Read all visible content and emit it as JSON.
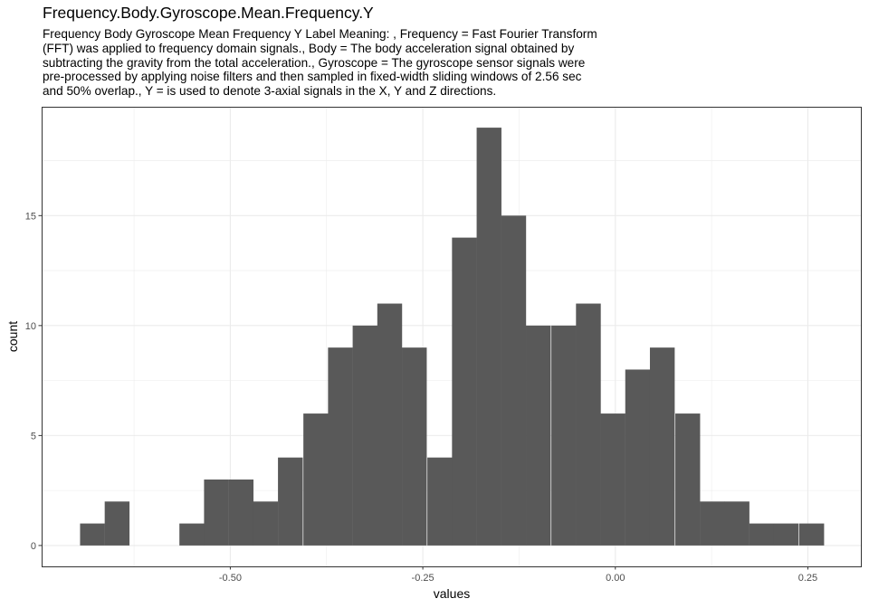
{
  "chart_data": {
    "type": "bar",
    "title": "Frequency.Body.Gyroscope.Mean.Frequency.Y",
    "subtitle_lines": [
      "Frequency Body Gyroscope Mean Frequency Y Label Meaning: , Frequency = Fast Fourier Transform",
      "(FFT) was applied to frequency domain signals., Body = The body acceleration signal obtained by",
      "subtracting the gravity from the total acceleration., Gyroscope = The gyroscope sensor signals were",
      "pre-processed by applying noise filters and then sampled in fixed-width sliding windows of 2.56 sec",
      "and 50% overlap., Y = is used to denote 3-axial signals in the X, Y and Z directions."
    ],
    "xlabel": "values",
    "ylabel": "count",
    "xlim": [
      -0.745,
      0.32
    ],
    "ylim": [
      -0.95,
      19.95
    ],
    "x_ticks": [
      {
        "value": -0.5,
        "label": "-0.50"
      },
      {
        "value": -0.25,
        "label": "-0.25"
      },
      {
        "value": 0.0,
        "label": "0.00"
      },
      {
        "value": 0.25,
        "label": "0.25"
      }
    ],
    "y_ticks": [
      {
        "value": 0,
        "label": "0"
      },
      {
        "value": 5,
        "label": "5"
      },
      {
        "value": 10,
        "label": "10"
      },
      {
        "value": 15,
        "label": "15"
      }
    ],
    "grid": true,
    "bar_color": "#595959",
    "bin_width": 0.0322,
    "bins": [
      {
        "x": -0.679,
        "count": 1
      },
      {
        "x": -0.647,
        "count": 2
      },
      {
        "x": -0.615,
        "count": 0
      },
      {
        "x": -0.583,
        "count": 0
      },
      {
        "x": -0.55,
        "count": 1
      },
      {
        "x": -0.518,
        "count": 3
      },
      {
        "x": -0.486,
        "count": 3
      },
      {
        "x": -0.454,
        "count": 2
      },
      {
        "x": -0.422,
        "count": 4
      },
      {
        "x": -0.389,
        "count": 6
      },
      {
        "x": -0.357,
        "count": 9
      },
      {
        "x": -0.325,
        "count": 10
      },
      {
        "x": -0.293,
        "count": 11
      },
      {
        "x": -0.261,
        "count": 9
      },
      {
        "x": -0.228,
        "count": 4
      },
      {
        "x": -0.196,
        "count": 14
      },
      {
        "x": -0.164,
        "count": 19
      },
      {
        "x": -0.132,
        "count": 15
      },
      {
        "x": -0.1,
        "count": 10
      },
      {
        "x": -0.067,
        "count": 10
      },
      {
        "x": -0.035,
        "count": 11
      },
      {
        "x": -0.003,
        "count": 6
      },
      {
        "x": 0.029,
        "count": 8
      },
      {
        "x": 0.061,
        "count": 9
      },
      {
        "x": 0.094,
        "count": 6
      },
      {
        "x": 0.126,
        "count": 2
      },
      {
        "x": 0.158,
        "count": 2
      },
      {
        "x": 0.19,
        "count": 1
      },
      {
        "x": 0.222,
        "count": 1
      },
      {
        "x": 0.255,
        "count": 1
      }
    ]
  }
}
